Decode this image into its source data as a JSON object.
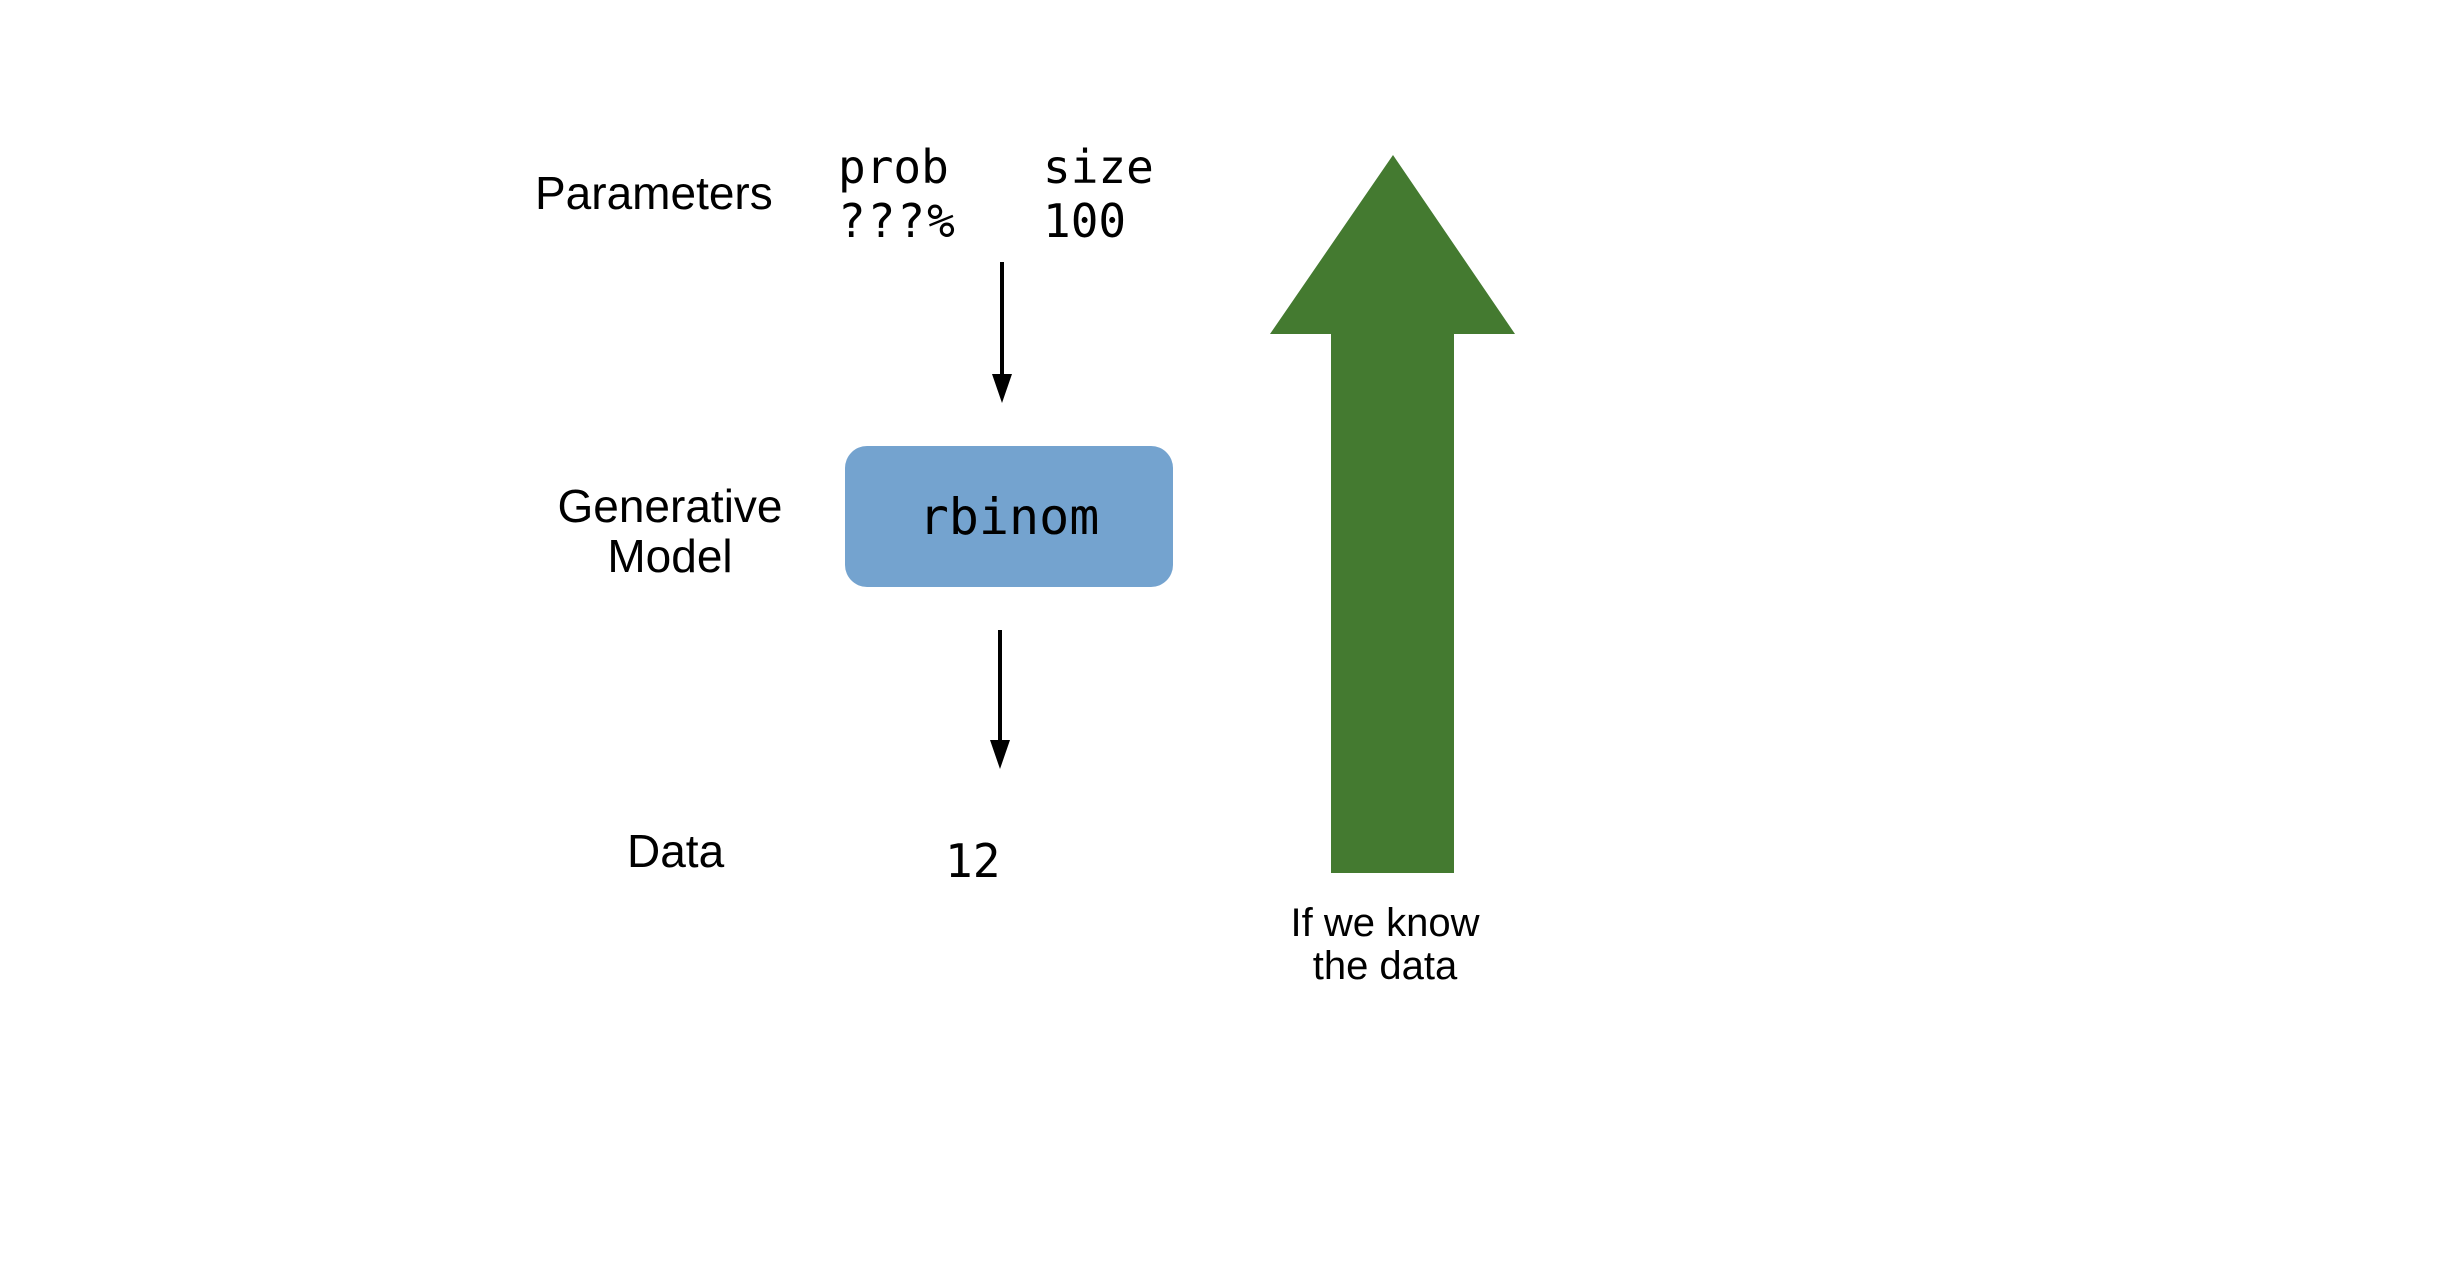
{
  "labels": {
    "parameters": "Parameters",
    "generative_line1": "Generative",
    "generative_line2": "Model",
    "data": "Data"
  },
  "parameters": {
    "prob_name": "prob",
    "prob_value": "???%",
    "size_name": "size",
    "size_value": "100"
  },
  "model": {
    "function": "rbinom"
  },
  "data_value": "12",
  "note": {
    "line1": "If we know",
    "line2": "the data"
  },
  "colors": {
    "model_box": "#74a3cf",
    "big_arrow": "#447a30",
    "flow_arrows": "#000000"
  }
}
